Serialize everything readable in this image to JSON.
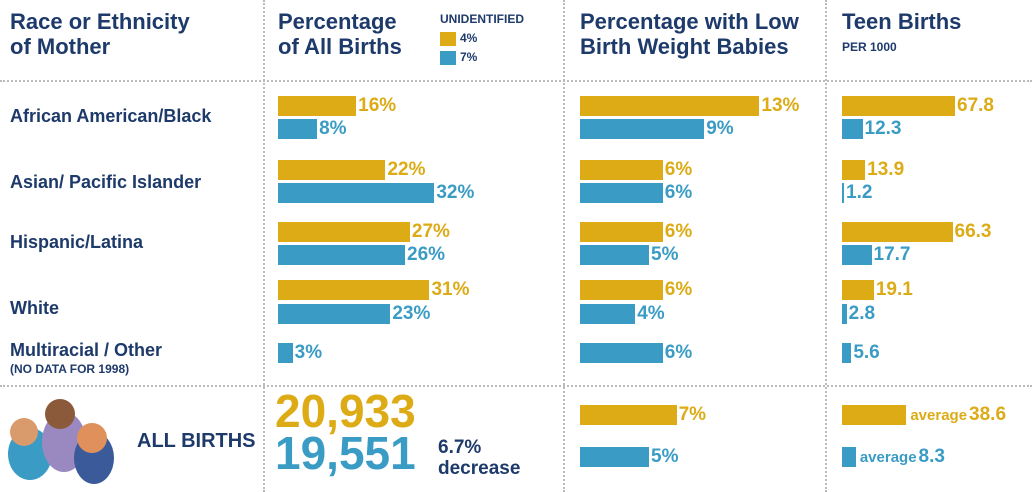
{
  "series_colors": [
    "#dcab16",
    "#3a9cc4"
  ],
  "columns": [
    {
      "title_lines": [
        "Race or Ethnicity",
        "of Mother"
      ]
    },
    {
      "title_lines": [
        "Percentage",
        "of All Births"
      ],
      "xlim": [
        0,
        35
      ],
      "legend": {
        "title": "UNIDENTIFIED",
        "items": [
          "4%",
          "7%"
        ]
      }
    },
    {
      "title_lines": [
        "Percentage with Low",
        "Birth Weight Babies"
      ],
      "xlim": [
        0,
        15
      ]
    },
    {
      "title_lines": [
        "Teen Births"
      ],
      "subtitle": "PER 1000",
      "xlim": [
        0,
        75
      ]
    }
  ],
  "rows": [
    {
      "label": "African American/Black",
      "percent": {
        "values": [
          16,
          8
        ],
        "value_labels": [
          "16%",
          "8%"
        ]
      },
      "low_birth_weight": {
        "values": [
          13,
          9
        ],
        "value_labels": [
          "13%",
          "9%"
        ]
      },
      "teen_births": {
        "values": [
          67.8,
          12.3
        ]
      }
    },
    {
      "label": "Asian/ Pacific Islander",
      "percent": {
        "values": [
          22,
          32
        ],
        "value_labels": [
          "22%",
          "32%"
        ]
      },
      "low_birth_weight": {
        "values": [
          6,
          6
        ],
        "value_labels": [
          "6%",
          "6%"
        ]
      },
      "teen_births": {
        "values": [
          13.9,
          1.2
        ]
      }
    },
    {
      "label": "Hispanic/Latina",
      "percent": {
        "values": [
          27,
          26
        ],
        "value_labels": [
          "27%",
          "26%"
        ]
      },
      "low_birth_weight": {
        "values": [
          6,
          5
        ],
        "value_labels": [
          "6%",
          "5%"
        ]
      },
      "teen_births": {
        "values": [
          66.3,
          17.7
        ]
      }
    },
    {
      "label": "White",
      "percent": {
        "values": [
          31,
          23
        ],
        "value_labels": [
          "31%",
          "23%"
        ]
      },
      "low_birth_weight": {
        "values": [
          6,
          4
        ],
        "value_labels": [
          "6%",
          "4%"
        ]
      },
      "teen_births": {
        "values": [
          19.1,
          2.8
        ]
      }
    },
    {
      "label": "Multiracial / Other",
      "note": "(NO DATA FOR 1998)",
      "percent": {
        "values": [
          null,
          3
        ],
        "value_labels": [
          null,
          "3%"
        ]
      },
      "low_birth_weight": {
        "values": [
          null,
          6
        ],
        "value_labels": [
          null,
          "6%"
        ]
      },
      "teen_births": {
        "values": [
          null,
          5.6
        ]
      }
    }
  ],
  "all_births": {
    "label": "ALL BIRTHS",
    "total_births": {
      "values": [
        20933,
        19551
      ],
      "value_labels": [
        "20,933",
        "19,551"
      ],
      "change": "6.7%",
      "change_label": "decrease"
    },
    "low_birth_weight": {
      "values": [
        7,
        5
      ],
      "value_labels": [
        "7%",
        "5%"
      ]
    },
    "teen_births": {
      "values": [
        38.6,
        8.3
      ],
      "prefix": "average"
    }
  }
}
